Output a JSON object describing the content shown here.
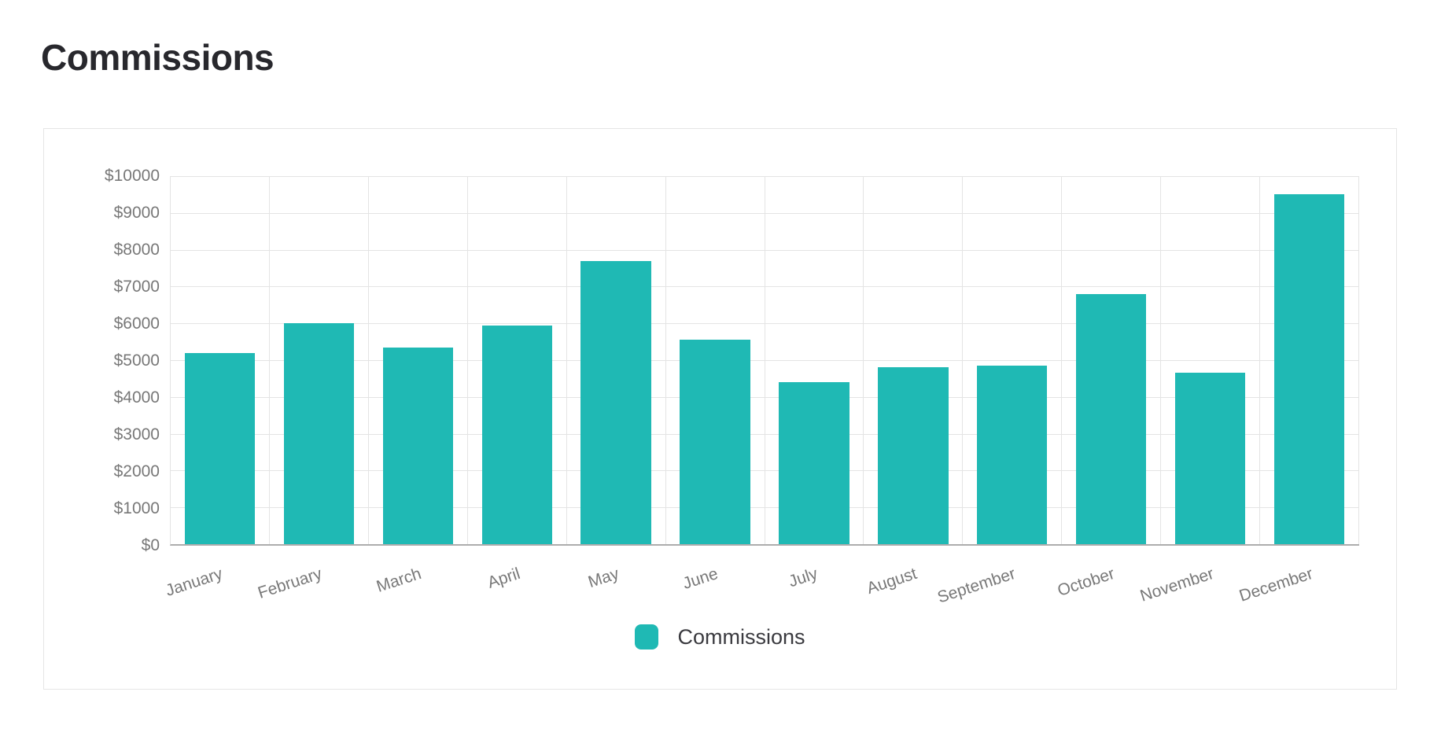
{
  "page": {
    "title": "Commissions"
  },
  "legend": {
    "label": "Commissions"
  },
  "colors": {
    "bar": "#1FB9B4",
    "grid_line": "#E4E4E4",
    "axis_line": "#ADADAD",
    "tick_label": "#787878",
    "legend_label": "#3A3A3F",
    "title": "#28282D",
    "card_border": "#E5E5E5",
    "background": "#FFFFFF"
  },
  "chart_data": {
    "type": "bar",
    "title": "Commissions",
    "categories": [
      "January",
      "February",
      "March",
      "April",
      "May",
      "June",
      "July",
      "August",
      "September",
      "October",
      "November",
      "December"
    ],
    "series": [
      {
        "name": "Commissions",
        "color": "#1FB9B4",
        "values": [
          5200,
          6000,
          5350,
          5950,
          7700,
          5550,
          4400,
          4800,
          4850,
          6800,
          4650,
          9500
        ]
      }
    ],
    "xlabel": "",
    "ylabel": "",
    "ylim": [
      0,
      10000
    ],
    "ytick_step": 1000,
    "ytick_labels": [
      "$0",
      "$1000",
      "$2000",
      "$3000",
      "$4000",
      "$5000",
      "$6000",
      "$7000",
      "$8000",
      "$9000",
      "$10000"
    ],
    "grid": true,
    "legend_position": "bottom",
    "x_label_rotation_deg": -18,
    "bar_percentage": 0.715
  }
}
